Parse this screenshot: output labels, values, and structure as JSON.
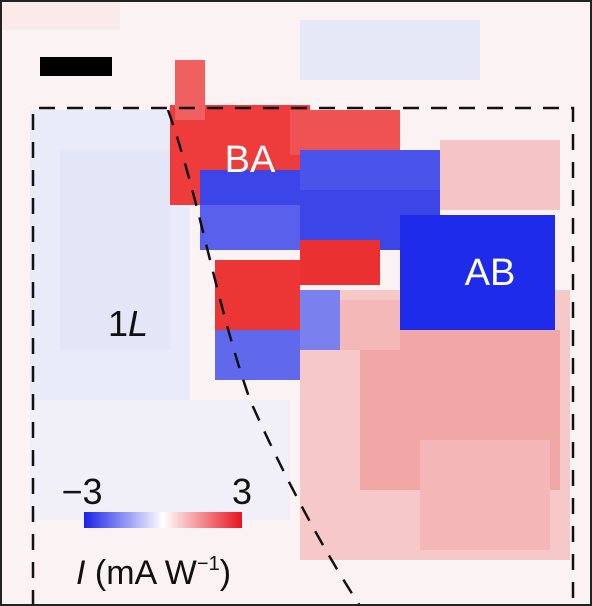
{
  "labels": {
    "ba": "BA",
    "ab": "AB",
    "layer_number": "1",
    "layer_letter": "L"
  },
  "colorbar": {
    "min_label": "−3",
    "max_label": "3",
    "title_symbol": "I",
    "title_unit": " (mA W",
    "title_exponent": "−1",
    "title_close": ")"
  }
}
